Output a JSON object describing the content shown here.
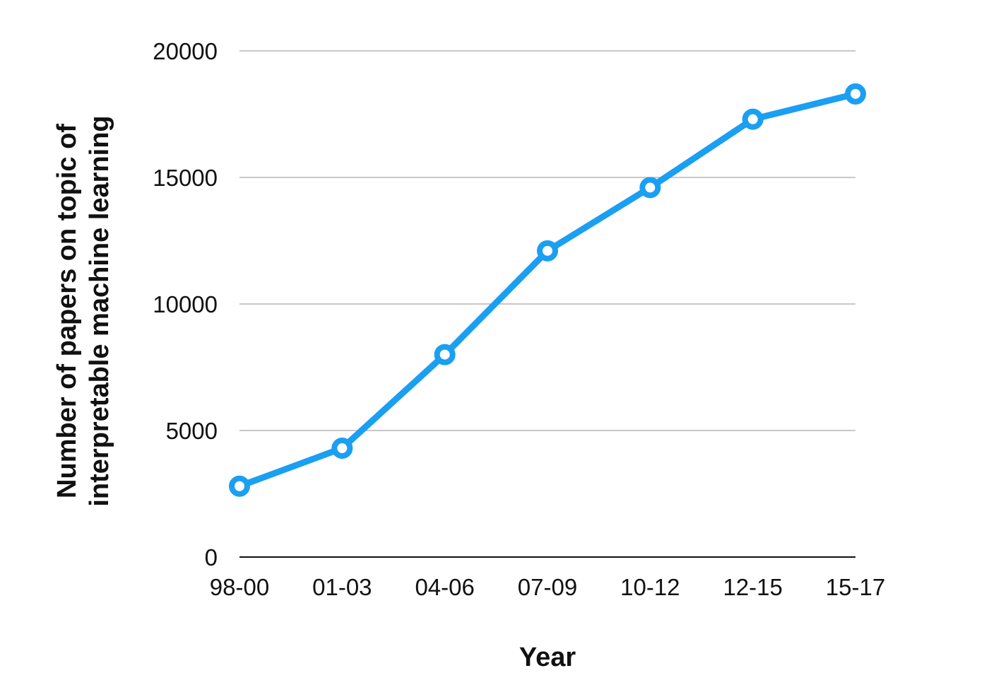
{
  "chart_data": {
    "type": "line",
    "title": "",
    "xlabel": "Year",
    "ylabel": "Number of papers on topic of\ninterpretable machine learning",
    "categories": [
      "98-00",
      "01-03",
      "04-06",
      "07-09",
      "10-12",
      "12-15",
      "15-17"
    ],
    "series": [
      {
        "values": [
          2800,
          4300,
          8000,
          12100,
          14600,
          17300,
          18300
        ],
        "color": "#1a9ff2"
      }
    ],
    "ylim": [
      0,
      20000
    ],
    "yticks": [
      0,
      5000,
      10000,
      15000,
      20000
    ],
    "grid": true,
    "legend": "none"
  }
}
